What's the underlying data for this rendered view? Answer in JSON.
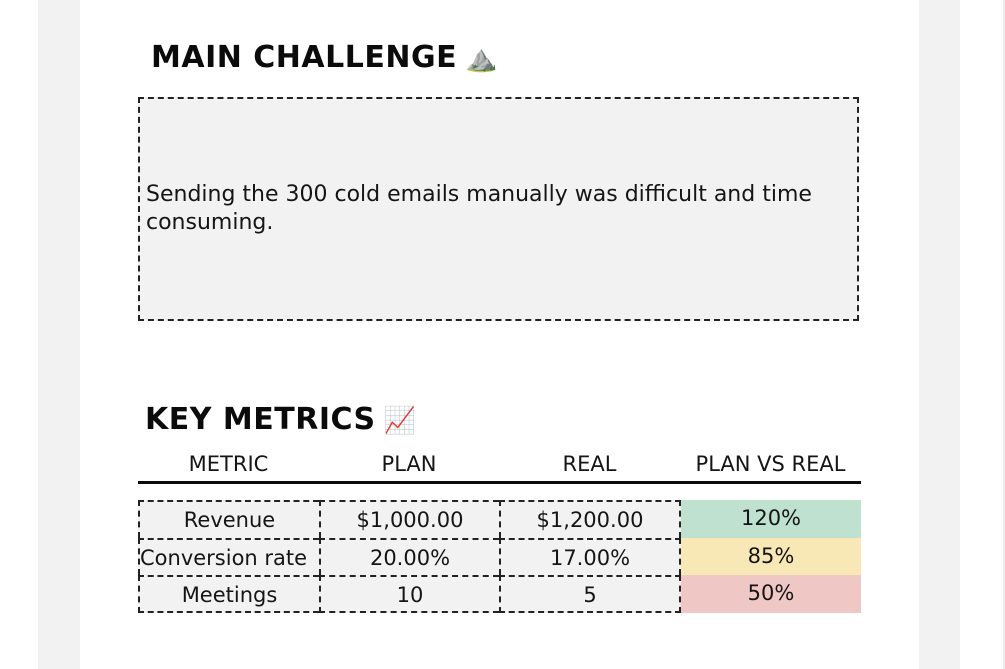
{
  "challenge": {
    "title": "MAIN CHALLENGE",
    "icon": "mountain-icon",
    "icon_glyph": "⛰️",
    "text": "Sending the 300 cold emails manually was difficult and time consuming."
  },
  "metrics": {
    "title": "KEY METRICS",
    "icon": "chart-increasing-icon",
    "icon_glyph": "📈",
    "columns": [
      "METRIC",
      "PLAN",
      "REAL",
      "PLAN VS REAL"
    ],
    "rows": [
      {
        "metric": "Revenue",
        "plan": "$1,000.00",
        "real": "$1,200.00",
        "plan_vs_real": "120%",
        "status_color": "#bfe1cf"
      },
      {
        "metric": "Conversion rate",
        "plan": "20.00%",
        "real": "17.00%",
        "plan_vs_real": "85%",
        "status_color": "#f8e8b5"
      },
      {
        "metric": "Meetings",
        "plan": "10",
        "real": "5",
        "plan_vs_real": "50%",
        "status_color": "#efc8c5"
      }
    ]
  },
  "colors": {
    "page_background": "#ffffff",
    "gutter": "#f2f2f2",
    "cell_background": "#f2f2f2",
    "good": "#bfe1cf",
    "warning": "#f8e8b5",
    "bad": "#efc8c5"
  }
}
